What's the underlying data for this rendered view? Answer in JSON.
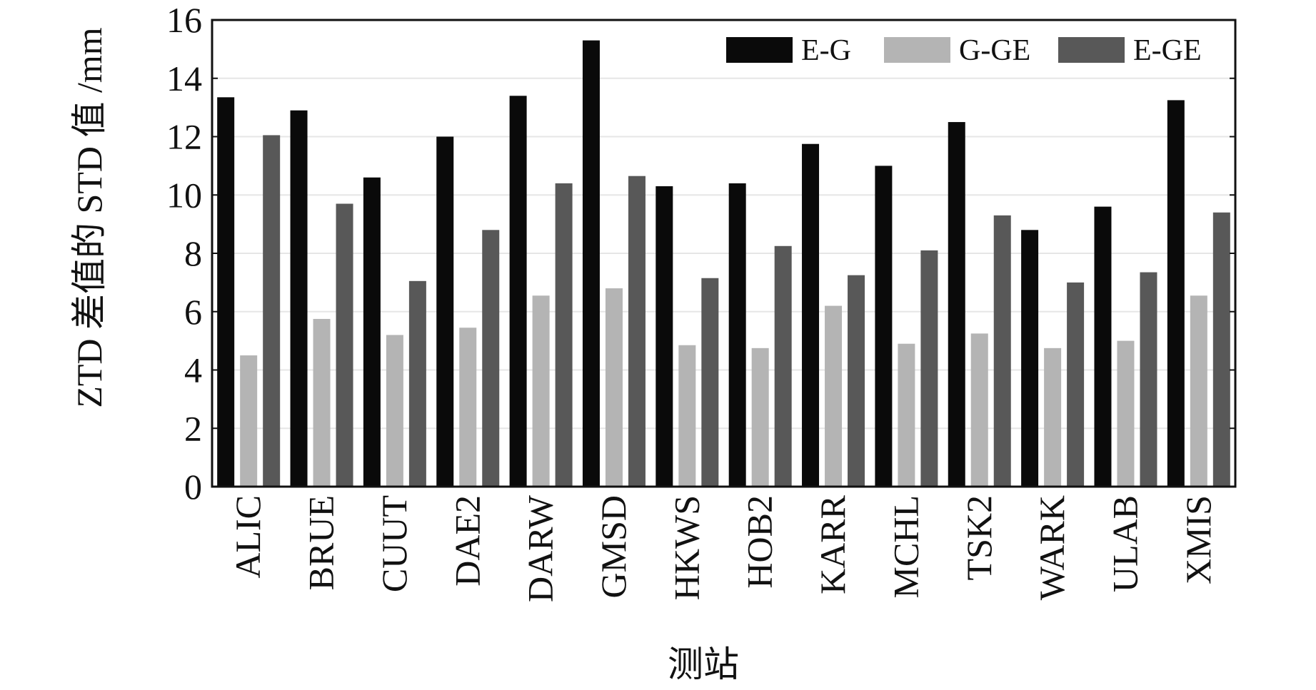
{
  "chart_data": {
    "type": "bar",
    "title": "",
    "xlabel": "测站",
    "ylabel": "ZTD 差值的 STD 值 /mm",
    "ylim": [
      0,
      16
    ],
    "yticks": [
      0,
      2,
      4,
      6,
      8,
      10,
      12,
      14,
      16
    ],
    "grid": true,
    "legend_position": "top-right",
    "categories": [
      "ALIC",
      "BRUE",
      "CUUT",
      "DAE2",
      "DARW",
      "GMSD",
      "HKWS",
      "HOB2",
      "KARR",
      "MCHL",
      "TSK2",
      "WARK",
      "ULAB",
      "XMIS"
    ],
    "series": [
      {
        "name": "E-G",
        "color": "#0a0a0a",
        "values": [
          13.35,
          12.9,
          10.6,
          12.0,
          13.4,
          15.3,
          10.3,
          10.4,
          11.75,
          11.0,
          12.5,
          8.8,
          9.6,
          13.25
        ]
      },
      {
        "name": "G-GE",
        "color": "#b4b4b4",
        "values": [
          4.5,
          5.75,
          5.2,
          5.45,
          6.55,
          6.8,
          4.85,
          4.75,
          6.2,
          4.9,
          5.25,
          4.75,
          5.0,
          6.55
        ]
      },
      {
        "name": "E-GE",
        "color": "#585858",
        "values": [
          12.05,
          9.7,
          7.05,
          8.8,
          10.4,
          10.65,
          7.15,
          8.25,
          7.25,
          8.1,
          9.3,
          7.0,
          7.35,
          9.4
        ]
      }
    ]
  }
}
